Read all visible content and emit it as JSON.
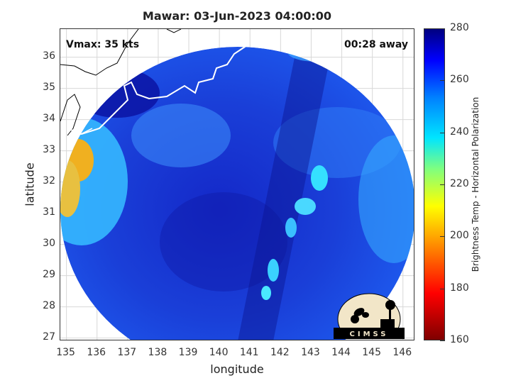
{
  "title": "Mawar: 03-Jun-2023 04:00:00",
  "annotations": {
    "vmax": "Vmax: 35 kts",
    "time_away": "00:28 away"
  },
  "chart_data": {
    "type": "heatmap",
    "title": "Mawar: 03-Jun-2023 04:00:00",
    "xlabel": "longitude",
    "ylabel": "latitude",
    "xlim": [
      134.8,
      146.4
    ],
    "ylim": [
      26.9,
      36.9
    ],
    "xticks": [
      "135",
      "136",
      "137",
      "138",
      "139",
      "140",
      "141",
      "142",
      "143",
      "144",
      "145",
      "146"
    ],
    "yticks": [
      "27",
      "28",
      "29",
      "30",
      "31",
      "32",
      "33",
      "34",
      "35",
      "36"
    ],
    "grid": true,
    "colorbar": {
      "label": "Brightness Temp - Horizontal Polarization",
      "range": [
        160,
        280
      ],
      "ticks": [
        "160",
        "180",
        "200",
        "220",
        "240",
        "260",
        "280"
      ],
      "colormap": "jet"
    }
  },
  "logo": {
    "text": "CIMSS"
  },
  "colors": {
    "low_temp": "#7f0000",
    "high_temp": "#00007f",
    "land_outline": "#ffffff"
  }
}
